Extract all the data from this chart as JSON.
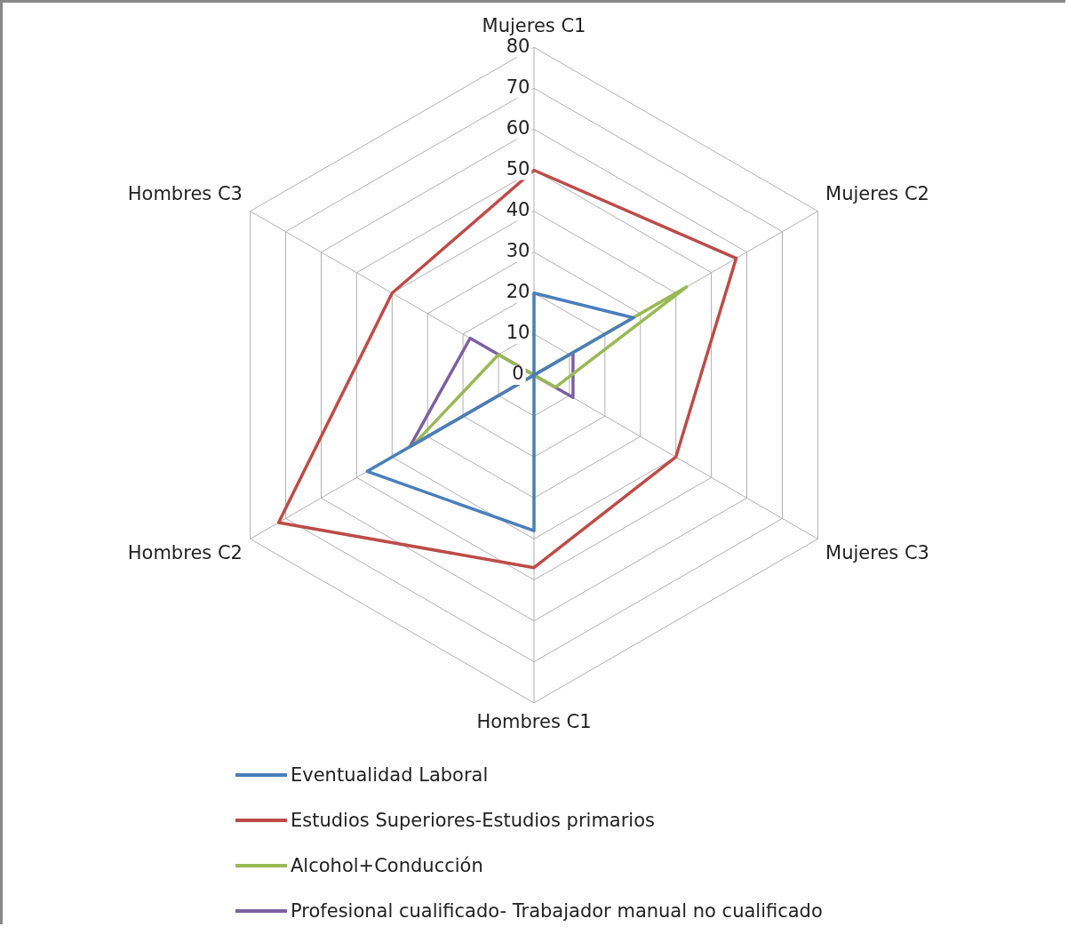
{
  "chart_data": {
    "type": "radar",
    "categories": [
      "Mujeres C1",
      "Mujeres C2",
      "Mujeres C3",
      "Hombres C1",
      "Hombres C2",
      "Hombres C3"
    ],
    "series": [
      {
        "name": "Eventualidad Laboral",
        "color": "#4a7ebb",
        "values": [
          20,
          28,
          0,
          38,
          47,
          0
        ]
      },
      {
        "name": "Estudios Superiores-Estudios primarios",
        "color": "#be4b48",
        "values": [
          50,
          57,
          40,
          47,
          72,
          40
        ]
      },
      {
        "name": "Alcohol+Conducción",
        "color": "#98b954",
        "values": [
          0,
          43,
          6,
          0,
          34,
          10
        ]
      },
      {
        "name": "Profesional cualificado- Trabajador manual no cualificado",
        "color": "#7d60a0",
        "values": [
          0,
          11,
          11,
          0,
          35,
          18
        ]
      }
    ],
    "ylim": [
      0,
      80
    ],
    "yticks": [
      0,
      10,
      20,
      30,
      40,
      50,
      60,
      70,
      80
    ],
    "grid": true,
    "legend": "bottom",
    "marker": "none"
  }
}
